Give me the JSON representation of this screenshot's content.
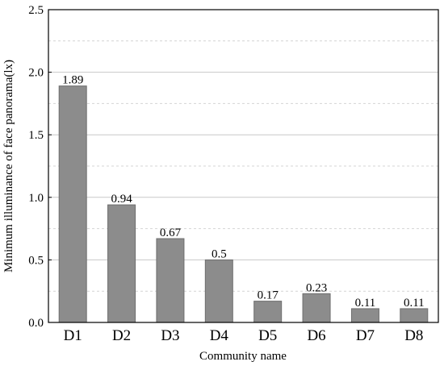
{
  "chart_data": {
    "type": "bar",
    "categories": [
      "D1",
      "D2",
      "D3",
      "D4",
      "D5",
      "D6",
      "D7",
      "D8"
    ],
    "values": [
      1.89,
      0.94,
      0.67,
      0.5,
      0.17,
      0.23,
      0.11,
      0.11
    ],
    "data_labels": [
      "1.89",
      "0.94",
      "0.67",
      "0.5",
      "0.17",
      "0.23",
      "0.11",
      "0.11"
    ],
    "xlabel": "Community name",
    "ylabel": "Minimum illuminance of face panorama(lx)",
    "ylim": [
      0,
      2.5
    ],
    "yticks": [
      0.0,
      0.5,
      1.0,
      1.5,
      2.0,
      2.5
    ],
    "ytick_labels": [
      "0.0",
      "0.5",
      "1.0",
      "1.5",
      "2.0",
      "2.5"
    ],
    "grid": true,
    "bar_color": "#8c8c8c"
  }
}
